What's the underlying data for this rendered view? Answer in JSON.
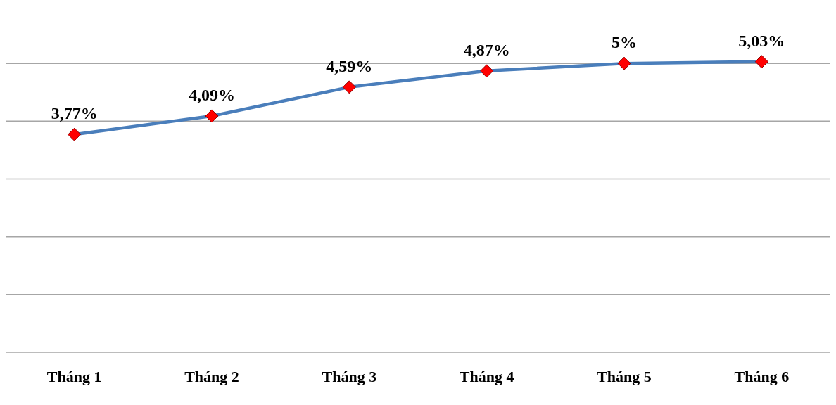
{
  "chart_data": {
    "type": "line",
    "categories": [
      "Tháng 1",
      "Tháng 2",
      "Tháng 3",
      "Tháng 4",
      "Tháng 5",
      "Tháng 6"
    ],
    "series": [
      {
        "color": "#4a7ebb",
        "values": [
          3.77,
          4.09,
          4.59,
          4.87,
          5,
          5.03
        ],
        "value_labels": [
          "3,77%",
          "4,09%",
          "4,59%",
          "4,87%",
          "5%",
          "5,03%"
        ],
        "colors": [
          "#ff0000",
          "#ff0000",
          "#ff0000",
          "#ff0000",
          "#ff0000",
          "#ff0000"
        ]
      }
    ],
    "ylim": [
      0,
      6
    ],
    "yticks": [
      {
        "value": 0,
        "label": null
      },
      {
        "value": 1,
        "label": null
      },
      {
        "value": 2,
        "label": null
      },
      {
        "value": 3,
        "label": null
      },
      {
        "value": 4,
        "label": null
      },
      {
        "value": 5,
        "label": null
      },
      {
        "value": 6,
        "label": null
      }
    ],
    "grid": "y",
    "tick_labels": "x",
    "marker": "diamond",
    "line_style": "solid",
    "legend": false
  }
}
